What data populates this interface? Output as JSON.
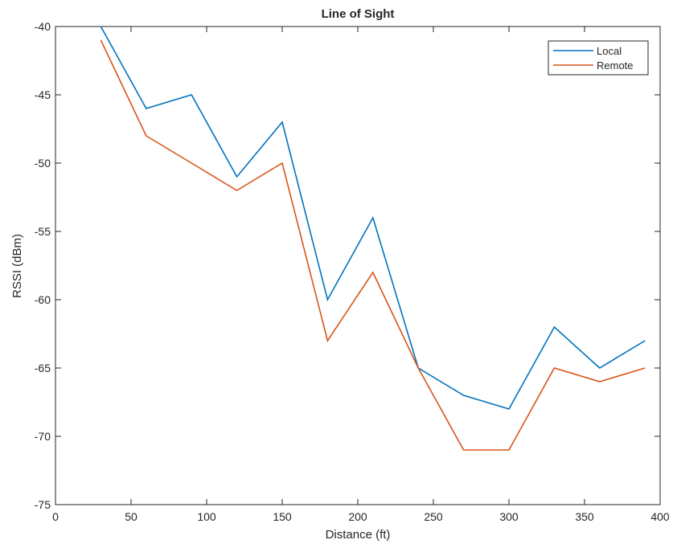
{
  "chart_data": {
    "type": "line",
    "title": "Line of Sight",
    "xlabel": "Distance (ft)",
    "ylabel": "RSSI (dBm)",
    "xlim": [
      0,
      400
    ],
    "ylim": [
      -75,
      -40
    ],
    "xticks": [
      0,
      50,
      100,
      150,
      200,
      250,
      300,
      350,
      400
    ],
    "yticks": [
      -75,
      -70,
      -65,
      -60,
      -55,
      -50,
      -45,
      -40
    ],
    "grid": false,
    "legend_position": "top-right",
    "x": [
      30,
      60,
      90,
      120,
      150,
      180,
      210,
      240,
      270,
      300,
      330,
      360,
      390
    ],
    "series": [
      {
        "name": "Local",
        "color": "#0072BD",
        "values": [
          -40,
          -46,
          -45,
          -51,
          -47,
          -60,
          -54,
          -65,
          -67,
          -68,
          -62,
          -65,
          -63
        ]
      },
      {
        "name": "Remote",
        "color": "#D95319",
        "values": [
          -41,
          -48,
          -50,
          -52,
          -50,
          -63,
          -58,
          -65,
          -71,
          -71,
          -65,
          -66,
          -65
        ]
      }
    ]
  }
}
